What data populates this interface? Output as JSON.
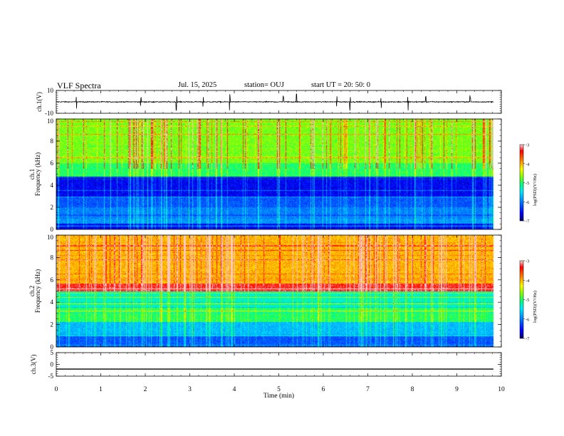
{
  "header": {
    "title": "VLF Spectra",
    "date": "Jul. 15, 2025",
    "station": "station= OUJ",
    "start_time": "start  UT =   20: 50: 0"
  },
  "colors": {
    "colormap": [
      "#00008b",
      "#0000ff",
      "#0080ff",
      "#00ffff",
      "#00ff80",
      "#80ff00",
      "#ffff00",
      "#ff8000",
      "#ff0000",
      "#ffc0c0"
    ]
  },
  "chart_data": [
    {
      "type": "line",
      "panel": "ch1-waveform",
      "ylabel": "ch.1(V)",
      "ylim": [
        -10,
        10
      ],
      "y_ticks": [
        "10",
        "-10"
      ],
      "xlim": [
        0,
        10
      ],
      "baseline": 0,
      "noise_amplitude": 2,
      "spike_times_min": [
        0.45,
        1.9,
        2.7,
        3.3,
        3.9,
        5.1,
        5.4,
        6.3,
        6.6,
        7.3,
        7.9,
        8.3,
        9.3
      ]
    },
    {
      "type": "heatmap",
      "panel": "ch1-spectrogram",
      "ylabel_line1": "ch.1",
      "ylabel_line2": "Frequency  (kHz)",
      "ylim": [
        0,
        10
      ],
      "y_ticks": [
        "0",
        "2",
        "4",
        "6",
        "8",
        "10"
      ],
      "xlim": [
        0,
        10
      ],
      "data_end_min": 9.82,
      "colorbar_label": "log(PSD)(V²/Hz)",
      "colorbar_ticks": [
        "-3",
        "-4",
        "-5",
        "-6",
        "-7"
      ],
      "clim": [
        -7,
        -3
      ],
      "bands": [
        {
          "f0": 0,
          "f1": 0.5,
          "level": -6.6
        },
        {
          "f0": 0.5,
          "f1": 1.0,
          "level": -5.9
        },
        {
          "f0": 1.0,
          "f1": 2.0,
          "level": -6.0
        },
        {
          "f0": 2.0,
          "f1": 3.0,
          "level": -6.2
        },
        {
          "f0": 3.0,
          "f1": 4.8,
          "level": -6.6
        },
        {
          "f0": 4.8,
          "f1": 6.0,
          "level": -5.0
        },
        {
          "f0": 6.0,
          "f1": 10.0,
          "level": -4.7
        }
      ]
    },
    {
      "type": "heatmap",
      "panel": "ch2-spectrogram",
      "ylabel_line1": "ch.2",
      "ylabel_line2": "Frequency  (kHz)",
      "ylim": [
        0,
        10
      ],
      "y_ticks": [
        "0",
        "2",
        "4",
        "6",
        "8",
        "10"
      ],
      "xlim": [
        0,
        10
      ],
      "data_end_min": 9.82,
      "colorbar_label": "log(PSD)(V²/Hz)",
      "colorbar_ticks": [
        "-3",
        "-4",
        "-5",
        "-6",
        "-7"
      ],
      "clim": [
        -7,
        -3
      ],
      "bands": [
        {
          "f0": 0,
          "f1": 1.0,
          "level": -6.2
        },
        {
          "f0": 1.0,
          "f1": 2.2,
          "level": -5.7
        },
        {
          "f0": 2.2,
          "f1": 3.5,
          "level": -5.0
        },
        {
          "f0": 3.5,
          "f1": 5.0,
          "level": -5.3
        },
        {
          "f0": 5.0,
          "f1": 5.7,
          "level": -3.3
        },
        {
          "f0": 5.7,
          "f1": 10.0,
          "level": -4.0
        }
      ]
    },
    {
      "type": "line",
      "panel": "ch3-waveform",
      "ylabel": "ch.3(V)",
      "ylim": [
        -5,
        5
      ],
      "y_ticks": [
        "5",
        "0",
        "-5"
      ],
      "xlim": [
        0,
        10
      ],
      "baseline": -2,
      "noise_amplitude": 0
    }
  ],
  "xaxis": {
    "label": "Time  (min)",
    "ticks": [
      "0",
      "1",
      "2",
      "3",
      "4",
      "5",
      "6",
      "7",
      "8",
      "9",
      "10"
    ]
  }
}
